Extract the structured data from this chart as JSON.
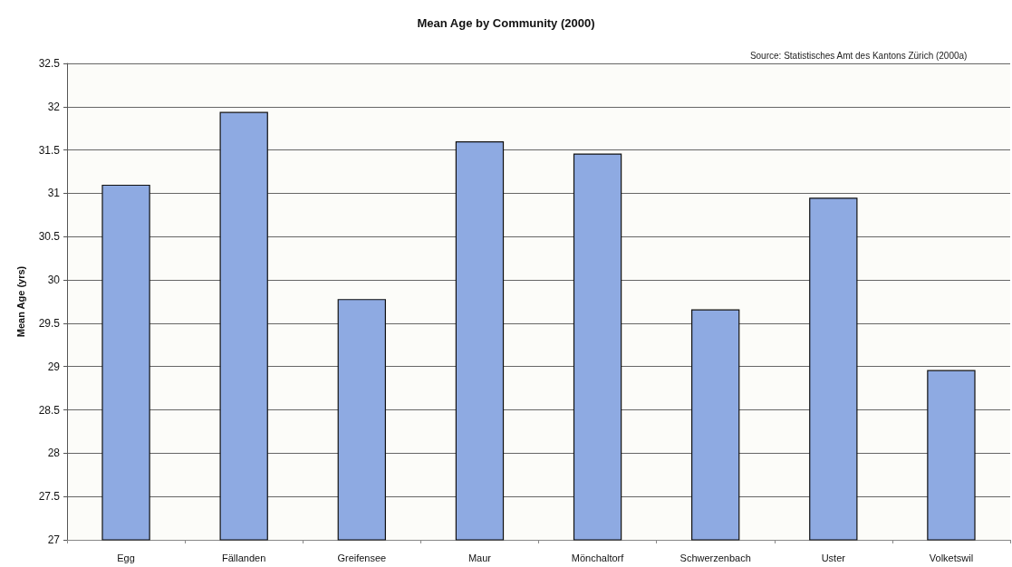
{
  "chart_data": {
    "type": "bar",
    "title": "Mean Age by Community (2000)",
    "ylabel": "Mean Age (yrs)",
    "annotations": [
      "Source: Statistisches Amt des Kantons Zürich (2000a)"
    ],
    "categories": [
      "Egg",
      "Fällanden",
      "Greifensee",
      "Maur",
      "Mönchaltorf",
      "Schwerzenbach",
      "Uster",
      "Volketswil"
    ],
    "values": [
      31.1,
      31.94,
      29.78,
      31.6,
      31.46,
      29.66,
      30.95,
      28.96
    ],
    "color": "#8eaae2",
    "ylim": [
      27,
      32.5
    ],
    "yticks": [
      27,
      27.5,
      28,
      28.5,
      29,
      29.5,
      30,
      30.5,
      31,
      31.5,
      32,
      32.5
    ],
    "grid": "y"
  }
}
